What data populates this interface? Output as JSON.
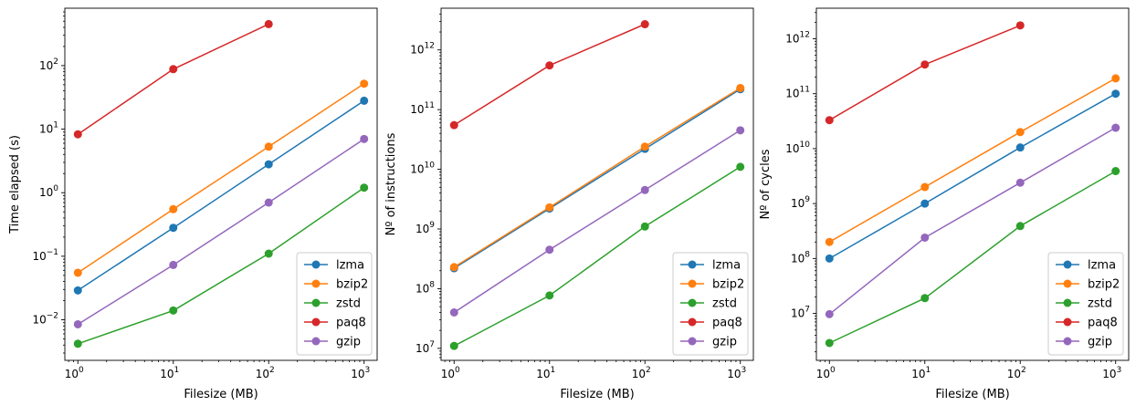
{
  "chart_data": [
    {
      "type": "line",
      "xscale": "log",
      "yscale": "log",
      "xlabel": "Filesize (MB)",
      "ylabel": "Time elapsed (s)",
      "xlim": [
        0.73,
        1370
      ],
      "ylim": [
        0.0023,
        800
      ],
      "xticks": [
        {
          "value": 1,
          "base": "10",
          "exp": "0"
        },
        {
          "value": 10,
          "base": "10",
          "exp": "1"
        },
        {
          "value": 100,
          "base": "10",
          "exp": "2"
        },
        {
          "value": 1000,
          "base": "10",
          "exp": "3"
        }
      ],
      "yticks": [
        {
          "value": 0.01,
          "base": "10",
          "exp": "−2"
        },
        {
          "value": 0.1,
          "base": "10",
          "exp": "−1"
        },
        {
          "value": 1,
          "base": "10",
          "exp": "0"
        },
        {
          "value": 10,
          "base": "10",
          "exp": "1"
        },
        {
          "value": 100,
          "base": "10",
          "exp": "2"
        }
      ],
      "grid": false,
      "legend_position": "lower-right",
      "series": [
        {
          "name": "lzma",
          "color": "#1f77b4",
          "x": [
            1,
            10,
            100,
            1000
          ],
          "y": [
            0.029,
            0.28,
            2.8,
            28
          ]
        },
        {
          "name": "bzip2",
          "color": "#ff7f0e",
          "x": [
            1,
            10,
            100,
            1000
          ],
          "y": [
            0.055,
            0.55,
            5.3,
            52
          ]
        },
        {
          "name": "zstd",
          "color": "#2ca02c",
          "x": [
            1,
            10,
            100,
            1000
          ],
          "y": [
            0.0042,
            0.014,
            0.11,
            1.2
          ]
        },
        {
          "name": "paq8",
          "color": "#d62728",
          "x": [
            1,
            10,
            100
          ],
          "y": [
            8.3,
            88,
            450
          ]
        },
        {
          "name": "gzip",
          "color": "#9467bd",
          "x": [
            1,
            10,
            100,
            1000
          ],
          "y": [
            0.0085,
            0.073,
            0.7,
            7
          ]
        }
      ]
    },
    {
      "type": "line",
      "xscale": "log",
      "yscale": "log",
      "xlabel": "Filesize (MB)",
      "ylabel": "Nº of instructions",
      "xlim": [
        0.73,
        1370
      ],
      "ylim": [
        6300000.0,
        5000000000000.0
      ],
      "xticks": [
        {
          "value": 1,
          "base": "10",
          "exp": "0"
        },
        {
          "value": 10,
          "base": "10",
          "exp": "1"
        },
        {
          "value": 100,
          "base": "10",
          "exp": "2"
        },
        {
          "value": 1000,
          "base": "10",
          "exp": "3"
        }
      ],
      "yticks": [
        {
          "value": 10000000.0,
          "base": "10",
          "exp": "7"
        },
        {
          "value": 100000000.0,
          "base": "10",
          "exp": "8"
        },
        {
          "value": 1000000000.0,
          "base": "10",
          "exp": "9"
        },
        {
          "value": 10000000000.0,
          "base": "10",
          "exp": "10"
        },
        {
          "value": 100000000000.0,
          "base": "10",
          "exp": "11"
        },
        {
          "value": 1000000000000.0,
          "base": "10",
          "exp": "12"
        }
      ],
      "grid": false,
      "legend_position": "lower-right",
      "series": [
        {
          "name": "lzma",
          "color": "#1f77b4",
          "x": [
            1,
            10,
            100,
            1000
          ],
          "y": [
            220000000.0,
            2200000000.0,
            22000000000.0,
            220000000000.0
          ]
        },
        {
          "name": "bzip2",
          "color": "#ff7f0e",
          "x": [
            1,
            10,
            100,
            1000
          ],
          "y": [
            230000000.0,
            2300000000.0,
            24000000000.0,
            230000000000.0
          ]
        },
        {
          "name": "zstd",
          "color": "#2ca02c",
          "x": [
            1,
            10,
            100,
            1000
          ],
          "y": [
            11000000.0,
            77000000.0,
            1100000000.0,
            11000000000.0
          ]
        },
        {
          "name": "paq8",
          "color": "#d62728",
          "x": [
            1,
            10,
            100
          ],
          "y": [
            55000000000.0,
            550000000000.0,
            2700000000000.0
          ]
        },
        {
          "name": "gzip",
          "color": "#9467bd",
          "x": [
            1,
            10,
            100,
            1000
          ],
          "y": [
            40000000.0,
            450000000.0,
            4500000000.0,
            45000000000.0
          ]
        }
      ]
    },
    {
      "type": "line",
      "xscale": "log",
      "yscale": "log",
      "xlabel": "Filesize (MB)",
      "ylabel": "Nº of cycles",
      "xlim": [
        0.73,
        1370
      ],
      "ylim": [
        1400000.0,
        3600000000000.0
      ],
      "xticks": [
        {
          "value": 1,
          "base": "10",
          "exp": "0"
        },
        {
          "value": 10,
          "base": "10",
          "exp": "1"
        },
        {
          "value": 100,
          "base": "10",
          "exp": "2"
        },
        {
          "value": 1000,
          "base": "10",
          "exp": "3"
        }
      ],
      "yticks": [
        {
          "value": 10000000.0,
          "base": "10",
          "exp": "7"
        },
        {
          "value": 100000000.0,
          "base": "10",
          "exp": "8"
        },
        {
          "value": 1000000000.0,
          "base": "10",
          "exp": "9"
        },
        {
          "value": 10000000000.0,
          "base": "10",
          "exp": "10"
        },
        {
          "value": 100000000000.0,
          "base": "10",
          "exp": "11"
        },
        {
          "value": 1000000000000.0,
          "base": "10",
          "exp": "12"
        }
      ],
      "grid": false,
      "legend_position": "lower-right",
      "series": [
        {
          "name": "lzma",
          "color": "#1f77b4",
          "x": [
            1,
            10,
            100,
            1000
          ],
          "y": [
            100000000.0,
            1000000000.0,
            10500000000.0,
            100000000000.0
          ]
        },
        {
          "name": "bzip2",
          "color": "#ff7f0e",
          "x": [
            1,
            10,
            100,
            1000
          ],
          "y": [
            200000000.0,
            2000000000.0,
            20000000000.0,
            190000000000.0
          ]
        },
        {
          "name": "zstd",
          "color": "#2ca02c",
          "x": [
            1,
            10,
            100,
            1000
          ],
          "y": [
            2900000.0,
            19000000.0,
            390000000.0,
            3900000000.0
          ]
        },
        {
          "name": "paq8",
          "color": "#d62728",
          "x": [
            1,
            10,
            100
          ],
          "y": [
            33000000000.0,
            340000000000.0,
            1750000000000.0
          ]
        },
        {
          "name": "gzip",
          "color": "#9467bd",
          "x": [
            1,
            10,
            100,
            1000
          ],
          "y": [
            9700000.0,
            240000000.0,
            2400000000.0,
            24000000000.0
          ]
        }
      ]
    }
  ]
}
